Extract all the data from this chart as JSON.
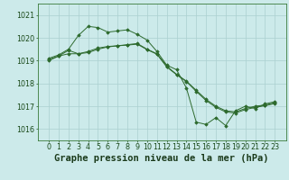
{
  "title": "Graphe pression niveau de la mer (hPa)",
  "xlabel_ticks": [
    "0",
    "1",
    "2",
    "3",
    "4",
    "5",
    "6",
    "7",
    "8",
    "9",
    "10",
    "11",
    "12",
    "13",
    "14",
    "15",
    "16",
    "17",
    "18",
    "19",
    "20",
    "21",
    "22",
    "23"
  ],
  "x": [
    0,
    1,
    2,
    3,
    4,
    5,
    6,
    7,
    8,
    9,
    10,
    11,
    12,
    13,
    14,
    15,
    16,
    17,
    18,
    19,
    20,
    21,
    22,
    23
  ],
  "line1": [
    1019.1,
    1019.25,
    1019.5,
    1020.1,
    1020.5,
    1020.45,
    1020.25,
    1020.3,
    1020.35,
    1020.15,
    1019.9,
    1019.4,
    1018.8,
    1018.6,
    1017.8,
    1016.3,
    1016.2,
    1016.5,
    1016.15,
    1016.8,
    1017.0,
    1016.9,
    1017.1,
    1017.2
  ],
  "line2": [
    1019.0,
    1019.2,
    1019.3,
    1019.3,
    1019.35,
    1019.5,
    1019.6,
    1019.65,
    1019.7,
    1019.75,
    1019.5,
    1019.3,
    1018.75,
    1018.4,
    1018.1,
    1017.7,
    1017.3,
    1017.0,
    1016.8,
    1016.75,
    1016.9,
    1017.0,
    1017.05,
    1017.15
  ],
  "line3": [
    1019.05,
    1019.2,
    1019.45,
    1019.3,
    1019.4,
    1019.55,
    1019.62,
    1019.65,
    1019.68,
    1019.72,
    1019.48,
    1019.28,
    1018.72,
    1018.38,
    1018.08,
    1017.65,
    1017.25,
    1016.95,
    1016.75,
    1016.7,
    1016.85,
    1016.95,
    1017.02,
    1017.12
  ],
  "line_color": "#2d6a2d",
  "marker_color": "#2d6a2d",
  "bg_color": "#cceaea",
  "grid_color": "#aad0d0",
  "ylim": [
    1015.5,
    1021.5
  ],
  "yticks": [
    1016,
    1017,
    1018,
    1019,
    1020,
    1021
  ],
  "title_fontsize": 7.5,
  "tick_fontsize": 5.8,
  "fig_width": 3.2,
  "fig_height": 2.0,
  "dpi": 100
}
